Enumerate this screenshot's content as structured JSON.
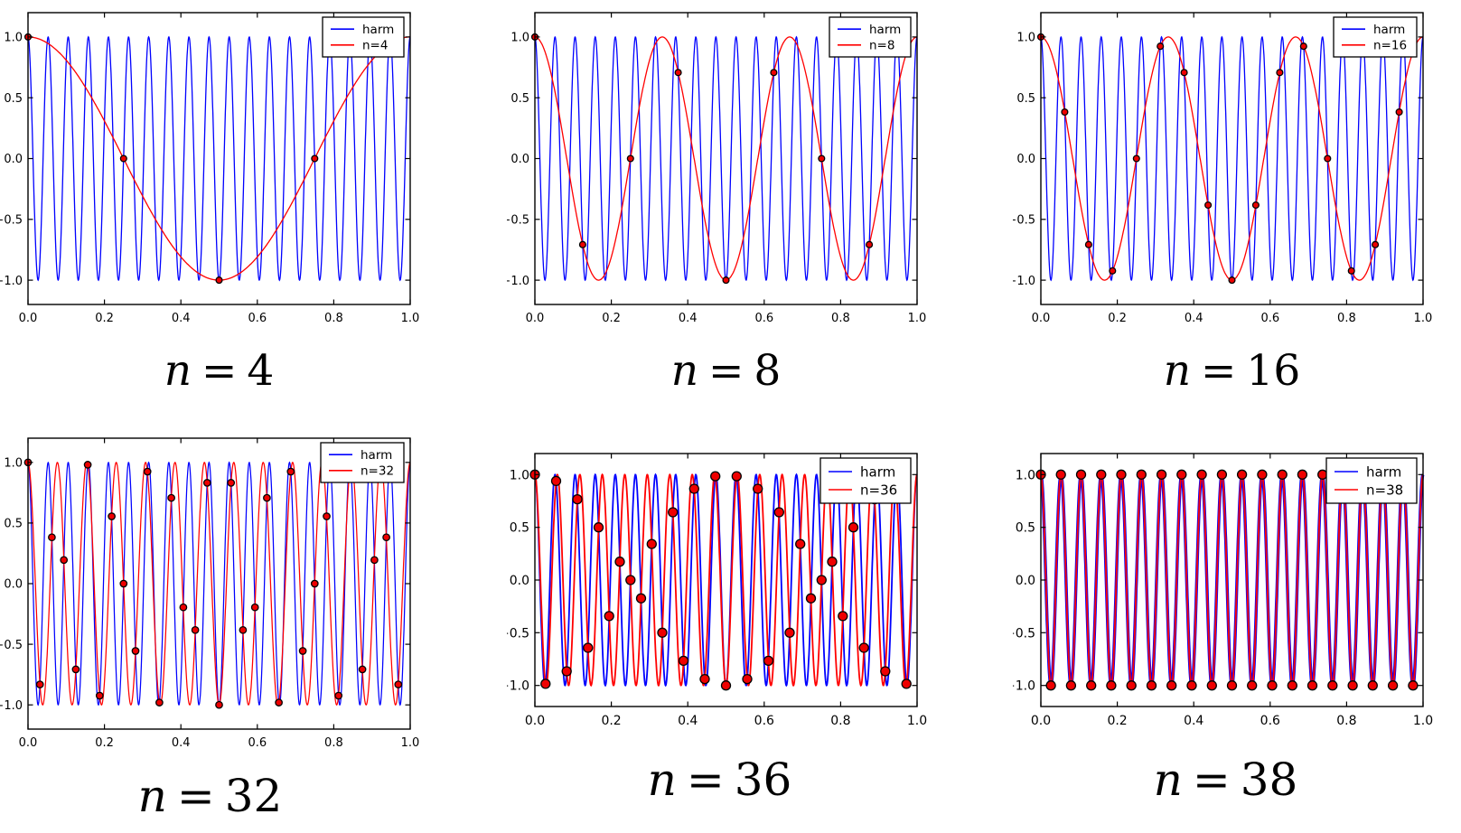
{
  "figure": {
    "background": "#ffffff",
    "colors": {
      "harm_line": "#0000ff",
      "alias_line": "#ff0000",
      "marker_face": "#ee0000",
      "marker_edge": "#000000",
      "axes": "#000000",
      "text": "#000000"
    }
  },
  "chart_data": [
    {
      "title": "n = 4",
      "caption": {
        "symbol": "n",
        "relation": "=",
        "value": "4"
      },
      "type": "line",
      "xlim": [
        0,
        1
      ],
      "ylim": [
        -1.2,
        1.2
      ],
      "x_ticks": [
        0,
        0.2,
        0.4,
        0.6,
        0.8,
        1.0
      ],
      "x_tick_labels": [
        "0.0",
        "0.2",
        "0.4",
        "0.6",
        "0.8",
        "1.0"
      ],
      "y_ticks": [
        1.0,
        0.5,
        0.0,
        -0.5,
        -1.0
      ],
      "y_tick_labels": [
        "1.0",
        "0.5",
        "0.0",
        "−0.5",
        "−1.0"
      ],
      "legend": {
        "position": "upper right",
        "entries": [
          "harm",
          "n=4"
        ]
      },
      "n_samples": 4,
      "aliased_frequency": 1,
      "series": [
        {
          "name": "harm",
          "type": "line",
          "color": "#0000ff",
          "function": "cos(2*pi*19*x)",
          "frequency": 19,
          "amplitude": 1,
          "phase": 0
        },
        {
          "name": "n=4",
          "type": "line",
          "color": "#ff0000",
          "function": "cos(2*pi*1*x)",
          "frequency": 1,
          "amplitude": 1,
          "phase": 0
        },
        {
          "name": "samples",
          "type": "scatter",
          "face_color": "#ee0000",
          "edge_color": "#000000",
          "x": [
            0,
            0.25,
            0.5,
            0.75
          ],
          "y": [
            1,
            0,
            -1,
            0
          ]
        }
      ]
    },
    {
      "title": "n = 8",
      "caption": {
        "symbol": "n",
        "relation": "=",
        "value": "8"
      },
      "type": "line",
      "xlim": [
        0,
        1
      ],
      "ylim": [
        -1.2,
        1.2
      ],
      "x_ticks": [
        0,
        0.2,
        0.4,
        0.6,
        0.8,
        1.0
      ],
      "x_tick_labels": [
        "0.0",
        "0.2",
        "0.4",
        "0.6",
        "0.8",
        "1.0"
      ],
      "y_ticks": [
        1.0,
        0.5,
        0.0,
        -0.5,
        -1.0
      ],
      "y_tick_labels": [
        "1.0",
        "0.5",
        "0.0",
        "−0.5",
        "−1.0"
      ],
      "legend": {
        "position": "upper right",
        "entries": [
          "harm",
          "n=8"
        ]
      },
      "n_samples": 8,
      "aliased_frequency": 3,
      "series": [
        {
          "name": "harm",
          "type": "line",
          "color": "#0000ff",
          "function": "cos(2*pi*19*x)",
          "frequency": 19,
          "amplitude": 1,
          "phase": 0
        },
        {
          "name": "n=8",
          "type": "line",
          "color": "#ff0000",
          "function": "cos(2*pi*3*x)",
          "frequency": 3,
          "amplitude": 1,
          "phase": 0
        },
        {
          "name": "samples",
          "type": "scatter",
          "face_color": "#ee0000",
          "edge_color": "#000000",
          "x": [
            0,
            0.125,
            0.25,
            0.375,
            0.5,
            0.625,
            0.75,
            0.875
          ],
          "y": [
            1,
            -0.7071,
            0,
            0.7071,
            -1,
            0.7071,
            0,
            -0.7071
          ]
        }
      ]
    },
    {
      "title": "n = 16",
      "caption": {
        "symbol": "n",
        "relation": "=",
        "value": "16"
      },
      "type": "line",
      "xlim": [
        0,
        1
      ],
      "ylim": [
        -1.2,
        1.2
      ],
      "x_ticks": [
        0,
        0.2,
        0.4,
        0.6,
        0.8,
        1.0
      ],
      "x_tick_labels": [
        "0.0",
        "0.2",
        "0.4",
        "0.6",
        "0.8",
        "1.0"
      ],
      "y_ticks": [
        1.0,
        0.5,
        0.0,
        -0.5,
        -1.0
      ],
      "y_tick_labels": [
        "1.0",
        "0.5",
        "0.0",
        "−0.5",
        "−1.0"
      ],
      "legend": {
        "position": "upper right",
        "entries": [
          "harm",
          "n=16"
        ]
      },
      "n_samples": 16,
      "aliased_frequency": 3,
      "series": [
        {
          "name": "harm",
          "type": "line",
          "color": "#0000ff",
          "function": "cos(2*pi*19*x)",
          "frequency": 19,
          "amplitude": 1,
          "phase": 0
        },
        {
          "name": "n=16",
          "type": "line",
          "color": "#ff0000",
          "function": "cos(2*pi*3*x)",
          "frequency": 3,
          "amplitude": 1,
          "phase": 0
        },
        {
          "name": "samples",
          "type": "scatter",
          "face_color": "#ee0000",
          "edge_color": "#000000",
          "x": [
            0,
            0.0625,
            0.125,
            0.1875,
            0.25,
            0.3125,
            0.375,
            0.4375,
            0.5,
            0.5625,
            0.625,
            0.6875,
            0.75,
            0.8125,
            0.875,
            0.9375
          ],
          "y": [
            1,
            0.3827,
            -0.7071,
            -0.9239,
            0,
            0.9239,
            0.7071,
            -0.3827,
            -1,
            -0.3827,
            0.7071,
            0.9239,
            0,
            -0.9239,
            -0.7071,
            0.3827
          ]
        }
      ]
    },
    {
      "title": "n = 32",
      "caption": {
        "symbol": "n",
        "relation": "=",
        "value": "32"
      },
      "type": "line",
      "xlim": [
        0,
        1
      ],
      "ylim": [
        -1.2,
        1.2
      ],
      "x_ticks": [
        0,
        0.2,
        0.4,
        0.6,
        0.8,
        1.0
      ],
      "x_tick_labels": [
        "0.0",
        "0.2",
        "0.4",
        "0.6",
        "0.8",
        "1.0"
      ],
      "y_ticks": [
        1.0,
        0.5,
        0.0,
        -0.5,
        -1.0
      ],
      "y_tick_labels": [
        "1.0",
        "0.5",
        "0.0",
        "−0.5",
        "−1.0"
      ],
      "legend": {
        "position": "upper right",
        "entries": [
          "harm",
          "n=32"
        ]
      },
      "n_samples": 32,
      "aliased_frequency": 13,
      "series": [
        {
          "name": "harm",
          "type": "line",
          "color": "#0000ff",
          "function": "cos(2*pi*19*x)",
          "frequency": 19,
          "amplitude": 1,
          "phase": 0
        },
        {
          "name": "n=32",
          "type": "line",
          "color": "#ff0000",
          "function": "cos(2*pi*13*x)",
          "frequency": 13,
          "amplitude": 1,
          "phase": 0
        },
        {
          "name": "samples",
          "type": "scatter",
          "face_color": "#ee0000",
          "edge_color": "#000000",
          "x": [
            0,
            0.0313,
            0.0625,
            0.0938,
            0.125,
            0.1563,
            0.1875,
            0.2188,
            0.25,
            0.2813,
            0.3125,
            0.3438,
            0.375,
            0.4063,
            0.4375,
            0.4688,
            0.5,
            0.5313,
            0.5625,
            0.5938,
            0.625,
            0.6563,
            0.6875,
            0.7188,
            0.75,
            0.7813,
            0.8125,
            0.8438,
            0.875,
            0.9063,
            0.9375,
            0.9688
          ],
          "y": [
            1,
            -0.8315,
            0.3827,
            0.1951,
            -0.7071,
            0.9808,
            -0.9239,
            0.5556,
            0,
            -0.5556,
            0.9239,
            -0.9808,
            0.7071,
            -0.1951,
            -0.3827,
            0.8315,
            -1,
            0.8315,
            -0.3827,
            -0.1951,
            0.7071,
            -0.9808,
            0.9239,
            -0.5556,
            0,
            0.5556,
            -0.9239,
            0.9808,
            -0.7071,
            0.1951,
            0.3827,
            -0.8315
          ]
        }
      ]
    },
    {
      "title": "n = 36",
      "caption": {
        "symbol": "n",
        "relation": "=",
        "value": "36"
      },
      "type": "line",
      "xlim": [
        0,
        1
      ],
      "ylim": [
        -1.2,
        1.2
      ],
      "x_ticks": [
        0,
        0.2,
        0.4,
        0.6,
        0.8,
        1.0
      ],
      "x_tick_labels": [
        "0.0",
        "0.2",
        "0.4",
        "0.6",
        "0.8",
        "1.0"
      ],
      "y_ticks": [
        1.0,
        0.5,
        0.0,
        -0.5,
        -1.0
      ],
      "y_tick_labels": [
        "1.0",
        "0.5",
        "0.0",
        "−0.5",
        "−1.0"
      ],
      "legend": {
        "position": "upper right",
        "entries": [
          "harm",
          "n=36"
        ]
      },
      "n_samples": 36,
      "aliased_frequency": 17,
      "series": [
        {
          "name": "harm",
          "type": "line",
          "color": "#0000ff",
          "function": "cos(2*pi*19*x)",
          "frequency": 19,
          "amplitude": 1,
          "phase": 0
        },
        {
          "name": "n=36",
          "type": "line",
          "color": "#ff0000",
          "function": "cos(2*pi*17*x)",
          "frequency": 17,
          "amplitude": 1,
          "phase": 0
        },
        {
          "name": "samples",
          "type": "scatter",
          "face_color": "#ee0000",
          "edge_color": "#000000",
          "x": [
            0,
            0.0278,
            0.0556,
            0.0833,
            0.1111,
            0.1389,
            0.1667,
            0.1944,
            0.2222,
            0.25,
            0.2778,
            0.3056,
            0.3333,
            0.3611,
            0.3889,
            0.4167,
            0.4444,
            0.4722,
            0.5,
            0.5278,
            0.5556,
            0.5833,
            0.6111,
            0.6389,
            0.6667,
            0.6944,
            0.7222,
            0.75,
            0.7778,
            0.8056,
            0.8333,
            0.8611,
            0.8889,
            0.9167,
            0.9444,
            0.9722
          ],
          "y": [
            1,
            -0.9848,
            0.9397,
            -0.866,
            0.766,
            -0.6428,
            0.5,
            -0.342,
            0.1736,
            0,
            -0.1736,
            0.342,
            -0.5,
            0.6428,
            -0.766,
            0.866,
            -0.9397,
            0.9848,
            -1,
            0.9848,
            -0.9397,
            0.866,
            -0.766,
            0.6428,
            -0.5,
            0.342,
            -0.1736,
            0,
            0.1736,
            -0.342,
            0.5,
            -0.6428,
            0.766,
            -0.866,
            0.9397,
            -0.9848
          ]
        }
      ]
    },
    {
      "title": "n = 38",
      "caption": {
        "symbol": "n",
        "relation": "=",
        "value": "38"
      },
      "type": "line",
      "xlim": [
        0,
        1
      ],
      "ylim": [
        -1.2,
        1.2
      ],
      "x_ticks": [
        0,
        0.2,
        0.4,
        0.6,
        0.8,
        1.0
      ],
      "x_tick_labels": [
        "0.0",
        "0.2",
        "0.4",
        "0.6",
        "0.8",
        "1.0"
      ],
      "y_ticks": [
        1.0,
        0.5,
        0.0,
        -0.5,
        -1.0
      ],
      "y_tick_labels": [
        "1.0",
        "0.5",
        "0.0",
        "−0.5",
        "−1.0"
      ],
      "legend": {
        "position": "upper right",
        "entries": [
          "harm",
          "n=38"
        ]
      },
      "n_samples": 38,
      "aliased_frequency": 19,
      "series": [
        {
          "name": "harm",
          "type": "line",
          "color": "#0000ff",
          "function": "cos(2*pi*19*x)",
          "frequency": 19,
          "amplitude": 1,
          "phase": 0
        },
        {
          "name": "n=38",
          "type": "line",
          "color": "#ff0000",
          "function": "cos(2*pi*19*x)",
          "frequency": 19,
          "amplitude": 1,
          "phase": 0
        },
        {
          "name": "samples",
          "type": "scatter",
          "face_color": "#ee0000",
          "edge_color": "#000000",
          "x": [
            0,
            0.0263,
            0.0526,
            0.0789,
            0.1053,
            0.1316,
            0.1579,
            0.1842,
            0.2105,
            0.2368,
            0.2632,
            0.2895,
            0.3158,
            0.3421,
            0.3684,
            0.3947,
            0.4211,
            0.4474,
            0.4737,
            0.5,
            0.5263,
            0.5526,
            0.5789,
            0.6053,
            0.6316,
            0.6579,
            0.6842,
            0.7105,
            0.7368,
            0.7632,
            0.7895,
            0.8158,
            0.8421,
            0.8684,
            0.8947,
            0.9211,
            0.9474,
            0.9737
          ],
          "y": [
            1,
            -1,
            1,
            -1,
            1,
            -1,
            1,
            -1,
            1,
            -1,
            1,
            -1,
            1,
            -1,
            1,
            -1,
            1,
            -1,
            1,
            -1,
            1,
            -1,
            1,
            -1,
            1,
            -1,
            1,
            -1,
            1,
            -1,
            1,
            -1,
            1,
            -1,
            1,
            -1,
            1,
            -1
          ]
        }
      ]
    }
  ]
}
